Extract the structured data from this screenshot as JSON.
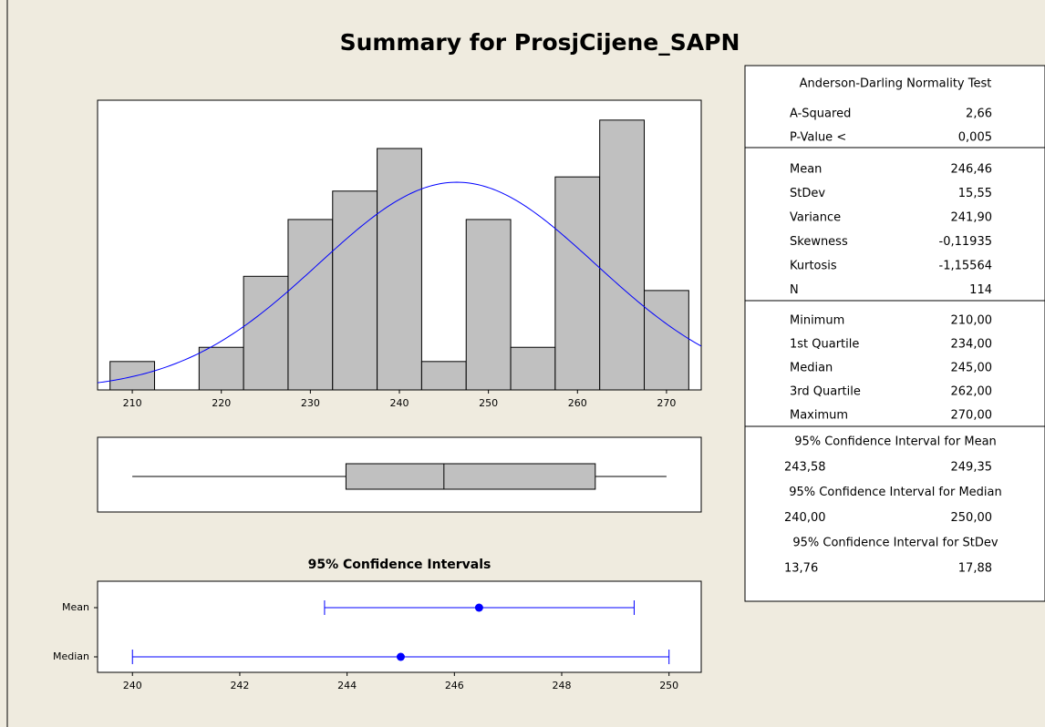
{
  "title": "Summary for ProsjCijene_SAPN",
  "chart_data": [
    {
      "type": "histogram",
      "bins": [
        207.5,
        212.5,
        217.5,
        222.5,
        227.5,
        232.5,
        237.5,
        242.5,
        247.5,
        252.5,
        257.5,
        262.5,
        267.5,
        272.5
      ],
      "counts": [
        2,
        0,
        3,
        8,
        12,
        14,
        17,
        2,
        12,
        3,
        15,
        19,
        7
      ],
      "xlim": [
        206.1,
        273.9
      ],
      "ylim": [
        0,
        20.4
      ],
      "xticks": [
        210,
        220,
        230,
        240,
        250,
        260,
        270
      ],
      "color": "#c0c0c0",
      "curve_color": "#0000ff"
    },
    {
      "type": "interval",
      "title": "95% Confidence Intervals",
      "categories": [
        "Mean",
        "Median"
      ],
      "xlim": [
        239.35,
        250.6
      ],
      "xticks": [
        240,
        242,
        244,
        246,
        248,
        250
      ],
      "color": "#0000ff"
    }
  ],
  "summary": {
    "test_title": "Anderson-Darling Normality Test",
    "test": [
      {
        "name": "A-Squared",
        "value": 2.66,
        "label": "2,66"
      },
      {
        "name": "P-Value <",
        "value": 0.005,
        "label": "0,005"
      }
    ],
    "stats": [
      {
        "name": "Mean",
        "value": 246.46,
        "label": "246,46"
      },
      {
        "name": "StDev",
        "value": 15.55,
        "label": "15,55"
      },
      {
        "name": "Variance",
        "value": 241.9,
        "label": "241,90"
      },
      {
        "name": "Skewness",
        "value": -0.11935,
        "label": "-0,11935"
      },
      {
        "name": "Kurtosis",
        "value": -1.15564,
        "label": "-1,15564"
      },
      {
        "name": "N",
        "value": 114,
        "label": "114"
      }
    ],
    "quartiles": [
      {
        "name": "Minimum",
        "value": 210,
        "label": "210,00"
      },
      {
        "name": "1st Quartile",
        "value": 234,
        "label": "234,00"
      },
      {
        "name": "Median",
        "value": 245,
        "label": "245,00"
      },
      {
        "name": "3rd Quartile",
        "value": 262,
        "label": "262,00"
      },
      {
        "name": "Maximum",
        "value": 270,
        "label": "270,00"
      }
    ],
    "intervals": [
      {
        "title": "95% Confidence Interval for Mean",
        "lower": {
          "value": 243.58,
          "label": "243,58"
        },
        "upper": {
          "value": 249.35,
          "label": "249,35"
        }
      },
      {
        "title": "95% Confidence Interval for Median",
        "lower": {
          "value": 240,
          "label": "240,00"
        },
        "upper": {
          "value": 250,
          "label": "250,00"
        }
      },
      {
        "title": "95% Confidence Interval for StDev",
        "lower": {
          "value": 13.76,
          "label": "13,76"
        },
        "upper": {
          "value": 17.88,
          "label": "17,88"
        }
      }
    ]
  }
}
